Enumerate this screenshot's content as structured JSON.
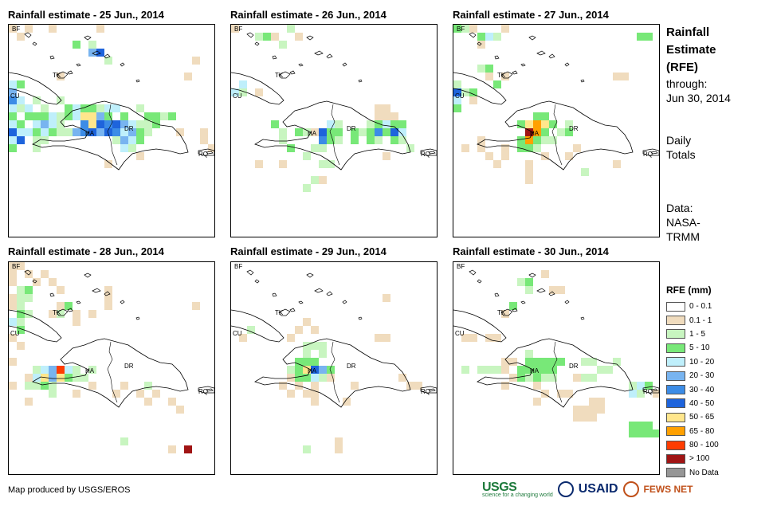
{
  "panels": [
    {
      "title": "Rainfall estimate - 25 Jun., 2014"
    },
    {
      "title": "Rainfall estimate - 26 Jun., 2014"
    },
    {
      "title": "Rainfall estimate - 27 Jun., 2014"
    },
    {
      "title": "Rainfall estimate - 28 Jun., 2014"
    },
    {
      "title": "Rainfall estimate - 29 Jun., 2014"
    },
    {
      "title": "Rainfall estimate - 30 Jun., 2014"
    }
  ],
  "map_labels": {
    "bf": "BF",
    "cu": "CU",
    "tk": "TK",
    "ha": "HA",
    "dr": "DR",
    "rq": "RQ"
  },
  "side": {
    "title_line1": "Rainfall",
    "title_line2": "Estimate",
    "title_line3": "(RFE)",
    "through_label": "through:",
    "through_date": "Jun 30, 2014",
    "totals_line1": "Daily",
    "totals_line2": "Totals",
    "data_line1": "Data:",
    "data_line2": "NASA-",
    "data_line3": "TRMM"
  },
  "legend": {
    "title": "RFE (mm)",
    "items": [
      {
        "label": "0 - 0.1",
        "color": "#ffffff"
      },
      {
        "label": "0.1 - 1",
        "color": "#f0dcbe"
      },
      {
        "label": "1 - 5",
        "color": "#c8f5c0"
      },
      {
        "label": "5 - 10",
        "color": "#78e878"
      },
      {
        "label": "10 - 20",
        "color": "#bfeffb"
      },
      {
        "label": "20 - 30",
        "color": "#78b4f0"
      },
      {
        "label": "30 - 40",
        "color": "#3c8ce6"
      },
      {
        "label": "40 - 50",
        "color": "#1e64dc"
      },
      {
        "label": "50 - 65",
        "color": "#ffe68c"
      },
      {
        "label": "65 - 80",
        "color": "#ffa000"
      },
      {
        "label": "80 - 100",
        "color": "#ff3c00"
      },
      {
        "label": "> 100",
        "color": "#a01414"
      },
      {
        "label": "No Data",
        "color": "#969696"
      }
    ]
  },
  "credit": "Map produced by USGS/EROS",
  "logos": {
    "usgs": "USGS",
    "usgs_tagline": "science for a changing world",
    "usaid": "USAID",
    "fews": "FEWS NET"
  }
}
